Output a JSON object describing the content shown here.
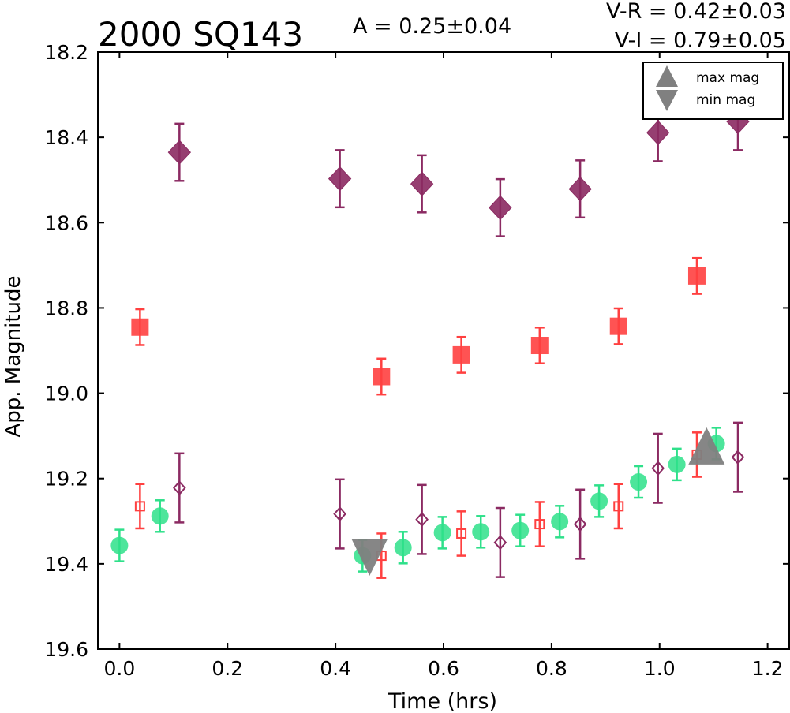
{
  "chart_data": {
    "type": "scatter",
    "title": "2000 SQ143",
    "annotations": {
      "amplitude": "A  = 0.25±0.04",
      "vr": "V-R = 0.42±0.03",
      "vi": "V-I  = 0.79±0.05"
    },
    "xlabel": "Time (hrs)",
    "ylabel": "App. Magnitude",
    "xlim": [
      -0.04,
      1.24
    ],
    "ylim": [
      19.6,
      18.2
    ],
    "y_inverted": true,
    "xticks": [
      "0.0",
      "0.2",
      "0.4",
      "0.6",
      "0.8",
      "1.0",
      "1.2"
    ],
    "yticks": [
      "18.2",
      "18.4",
      "18.6",
      "18.8",
      "19.0",
      "19.2",
      "19.4",
      "19.6"
    ],
    "grid": false,
    "legend_position": "top-right",
    "legend": [
      {
        "label": "max mag",
        "marker": "triangle-up",
        "color": "#808080"
      },
      {
        "label": "min mag",
        "marker": "triangle-down",
        "color": "#808080"
      }
    ],
    "series": [
      {
        "marker": "diamond-filled",
        "color": "#8B2A62",
        "points": [
          {
            "x": 0.111,
            "y": 18.435,
            "err": 0.067
          },
          {
            "x": 0.408,
            "y": 18.497,
            "err": 0.067
          },
          {
            "x": 0.56,
            "y": 18.509,
            "err": 0.067
          },
          {
            "x": 0.705,
            "y": 18.565,
            "err": 0.067
          },
          {
            "x": 0.853,
            "y": 18.521,
            "err": 0.067
          },
          {
            "x": 0.997,
            "y": 18.389,
            "err": 0.067
          },
          {
            "x": 1.145,
            "y": 18.363,
            "err": 0.067
          }
        ]
      },
      {
        "marker": "square-filled",
        "color": "#FF4040",
        "points": [
          {
            "x": 0.038,
            "y": 18.845,
            "err": 0.042
          },
          {
            "x": 0.485,
            "y": 18.961,
            "err": 0.042
          },
          {
            "x": 0.633,
            "y": 18.91,
            "err": 0.042
          },
          {
            "x": 0.778,
            "y": 18.888,
            "err": 0.042
          },
          {
            "x": 0.924,
            "y": 18.843,
            "err": 0.042
          },
          {
            "x": 1.069,
            "y": 18.725,
            "err": 0.042
          }
        ]
      },
      {
        "marker": "diamond-open",
        "color": "#8B2A62",
        "points": [
          {
            "x": 0.111,
            "y": 19.222,
            "err": 0.081
          },
          {
            "x": 0.408,
            "y": 19.283,
            "err": 0.081
          },
          {
            "x": 0.56,
            "y": 19.296,
            "err": 0.081
          },
          {
            "x": 0.705,
            "y": 19.35,
            "err": 0.081
          },
          {
            "x": 0.853,
            "y": 19.307,
            "err": 0.081
          },
          {
            "x": 0.997,
            "y": 19.176,
            "err": 0.081
          },
          {
            "x": 1.145,
            "y": 19.15,
            "err": 0.081
          }
        ]
      },
      {
        "marker": "square-open",
        "color": "#FF4040",
        "points": [
          {
            "x": 0.038,
            "y": 19.265,
            "err": 0.052
          },
          {
            "x": 0.485,
            "y": 19.381,
            "err": 0.052
          },
          {
            "x": 0.633,
            "y": 19.329,
            "err": 0.052
          },
          {
            "x": 0.778,
            "y": 19.307,
            "err": 0.052
          },
          {
            "x": 0.924,
            "y": 19.265,
            "err": 0.052
          },
          {
            "x": 1.069,
            "y": 19.144,
            "err": 0.052
          }
        ]
      },
      {
        "marker": "circle-filled",
        "color": "#2EE08A",
        "points": [
          {
            "x": 0.0,
            "y": 19.357,
            "err": 0.037
          },
          {
            "x": 0.075,
            "y": 19.288,
            "err": 0.037
          },
          {
            "x": 0.45,
            "y": 19.381,
            "err": 0.037
          },
          {
            "x": 0.525,
            "y": 19.362,
            "err": 0.037
          },
          {
            "x": 0.598,
            "y": 19.327,
            "err": 0.037
          },
          {
            "x": 0.669,
            "y": 19.325,
            "err": 0.037
          },
          {
            "x": 0.742,
            "y": 19.322,
            "err": 0.037
          },
          {
            "x": 0.815,
            "y": 19.301,
            "err": 0.037
          },
          {
            "x": 0.888,
            "y": 19.253,
            "err": 0.037
          },
          {
            "x": 0.961,
            "y": 19.208,
            "err": 0.037
          },
          {
            "x": 1.032,
            "y": 19.167,
            "err": 0.037
          },
          {
            "x": 1.105,
            "y": 19.118,
            "err": 0.037
          }
        ]
      }
    ],
    "extrema": [
      {
        "kind": "max",
        "marker": "triangle-up",
        "color": "#808080",
        "x": 1.087,
        "y": 19.13
      },
      {
        "kind": "min",
        "marker": "triangle-down",
        "color": "#808080",
        "x": 0.463,
        "y": 19.378
      }
    ]
  }
}
